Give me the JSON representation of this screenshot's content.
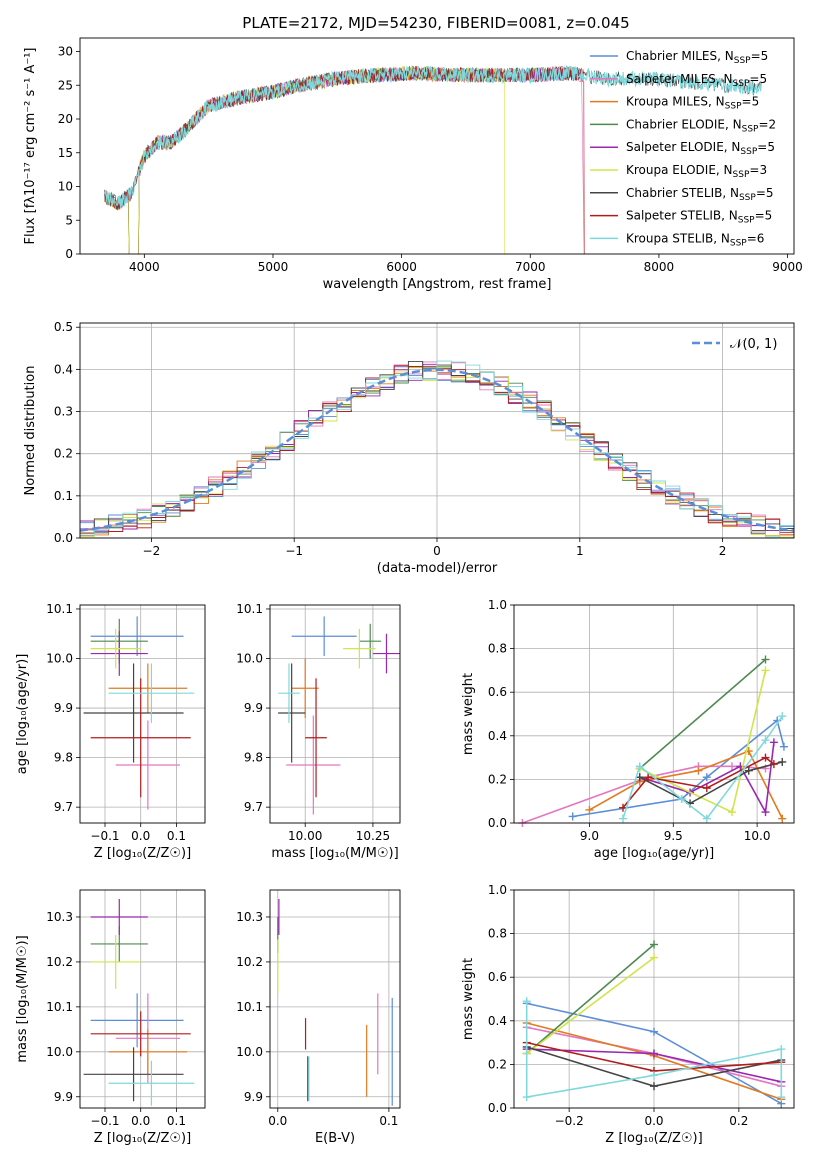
{
  "title": "PLATE=2172, MJD=54230, FIBERID=0081, z=0.045",
  "colors": {
    "chabrier_miles": "#5b8ed6",
    "salpeter_miles": "#e377c2",
    "kroupa_miles": "#e07b22",
    "chabrier_elodie": "#4e8a4e",
    "salpeter_elodie": "#9b27b0",
    "kroupa_elodie": "#cfe54a",
    "chabrier_stelib": "#444444",
    "salpeter_stelib": "#b11d1d",
    "kroupa_stelib": "#7fd9dc",
    "grid": "#b0b0b0",
    "normal_curve": "#5b8ed6"
  },
  "chart_data": [
    {
      "type": "line",
      "name": "spectrum",
      "xlabel": "wavelength [Angstrom, rest frame]",
      "ylabel": "Flux [fλ10⁻¹⁷ erg cm⁻² s⁻¹ A⁻¹]",
      "xlim": [
        3500,
        9050
      ],
      "ylim": [
        0,
        32
      ],
      "xticks": [
        "4000",
        "5000",
        "6000",
        "7000",
        "8000",
        "9000"
      ],
      "yticks": [
        "0",
        "5",
        "10",
        "15",
        "20",
        "25",
        "30"
      ],
      "spectrum_shape": {
        "x": [
          3690,
          3800,
          3900,
          4000,
          4100,
          4200,
          4300,
          4400,
          4500,
          4700,
          5000,
          5200,
          5500,
          5800,
          6100,
          6400,
          6700,
          7000,
          7300,
          7600,
          7900,
          8200,
          8500,
          8800
        ],
        "y": [
          8.5,
          7.5,
          9.0,
          14.5,
          16.5,
          16.5,
          18.0,
          20.0,
          22.0,
          23.0,
          24.0,
          25.0,
          26.0,
          26.5,
          26.8,
          26.5,
          26.5,
          26.5,
          26.8,
          26.0,
          26.0,
          25.5,
          25.0,
          24.5
        ]
      },
      "legend": [
        {
          "label": "Chabrier MILES, N",
          "sub": "SSP",
          "value": "=5"
        },
        {
          "label": "Salpeter MILES, N",
          "sub": "SSP",
          "value": "=5"
        },
        {
          "label": "Kroupa MILES, N",
          "sub": "SSP",
          "value": "=5"
        },
        {
          "label": "Chabrier ELODIE, N",
          "sub": "SSP",
          "value": "=2"
        },
        {
          "label": "Salpeter ELODIE, N",
          "sub": "SSP",
          "value": "=5"
        },
        {
          "label": "Kroupa ELODIE, N",
          "sub": "SSP",
          "value": "=3"
        },
        {
          "label": "Chabrier STELIB, N",
          "sub": "SSP",
          "value": "=5"
        },
        {
          "label": "Salpeter STELIB, N",
          "sub": "SSP",
          "value": "=5"
        },
        {
          "label": "Kroupa STELIB, N",
          "sub": "SSP",
          "value": "=6"
        }
      ]
    },
    {
      "type": "histogram",
      "name": "residuals",
      "xlabel": "(data-model)/error",
      "ylabel": "Normed distribution",
      "xlim": [
        -2.5,
        2.5
      ],
      "ylim": [
        0,
        0.51
      ],
      "xticks": [
        "−2",
        "−1",
        "0",
        "1",
        "2"
      ],
      "yticks": [
        "0.0",
        "0.1",
        "0.2",
        "0.3",
        "0.4",
        "0.5"
      ],
      "legend": "𝒩(0, 1)",
      "bin_width": 0.1
    },
    {
      "type": "errorbar",
      "name": "age-vs-Z",
      "xlabel": "Z [log₁₀(Z/Z☉)]",
      "ylabel": "age  [log₁₀(age/yr)]",
      "xlim": [
        -0.17,
        0.18
      ],
      "ylim": [
        9.668,
        10.108
      ],
      "xticks": [
        "−0.1",
        "0.0",
        "0.1"
      ],
      "yticks": [
        "9.7",
        "9.8",
        "9.9",
        "10.0",
        "10.1"
      ],
      "points": [
        {
          "series": "chabrier_miles",
          "x": -0.01,
          "y": 10.045,
          "xerr": 0.13,
          "yerr": 0.04
        },
        {
          "series": "salpeter_miles",
          "x": 0.02,
          "y": 9.785,
          "xerr": 0.09,
          "yerr": 0.09
        },
        {
          "series": "kroupa_miles",
          "x": 0.02,
          "y": 9.94,
          "xerr": 0.11,
          "yerr": 0.05
        },
        {
          "series": "chabrier_elodie",
          "x": -0.06,
          "y": 10.035,
          "xerr": 0.08,
          "yerr": 0.045
        },
        {
          "series": "salpeter_elodie",
          "x": -0.06,
          "y": 10.01,
          "xerr": 0.08,
          "yerr": 0.045
        },
        {
          "series": "kroupa_elodie",
          "x": -0.07,
          "y": 10.02,
          "xerr": 0.07,
          "yerr": 0.04
        },
        {
          "series": "chabrier_stelib",
          "x": -0.02,
          "y": 9.89,
          "xerr": 0.14,
          "yerr": 0.1
        },
        {
          "series": "salpeter_stelib",
          "x": 0.0,
          "y": 9.84,
          "xerr": 0.14,
          "yerr": 0.12
        },
        {
          "series": "kroupa_stelib",
          "x": 0.03,
          "y": 9.93,
          "xerr": 0.12,
          "yerr": 0.06
        }
      ]
    },
    {
      "type": "errorbar",
      "name": "age-vs-mass",
      "xlabel": "mass [log₁₀(M/M☉)]",
      "ylabel": "",
      "xlim": [
        9.87,
        10.35
      ],
      "ylim": [
        9.668,
        10.108
      ],
      "xticks": [
        "10.00",
        "10.25"
      ],
      "yticks": [
        "9.7",
        "9.8",
        "9.9",
        "10.0",
        "10.1"
      ],
      "points": [
        {
          "series": "chabrier_miles",
          "x": 10.07,
          "y": 10.045,
          "xerr": 0.12,
          "yerr": 0.04
        },
        {
          "series": "salpeter_miles",
          "x": 10.03,
          "y": 9.785,
          "xerr": 0.1,
          "yerr": 0.1
        },
        {
          "series": "kroupa_miles",
          "x": 10.0,
          "y": 9.94,
          "xerr": 0.05,
          "yerr": 0.06
        },
        {
          "series": "chabrier_elodie",
          "x": 10.24,
          "y": 10.035,
          "xerr": 0.04,
          "yerr": 0.035
        },
        {
          "series": "salpeter_elodie",
          "x": 10.3,
          "y": 10.01,
          "xerr": 0.05,
          "yerr": 0.04
        },
        {
          "series": "kroupa_elodie",
          "x": 10.2,
          "y": 10.02,
          "xerr": 0.06,
          "yerr": 0.04
        },
        {
          "series": "chabrier_stelib",
          "x": 9.95,
          "y": 9.89,
          "xerr": 0.05,
          "yerr": 0.1
        },
        {
          "series": "salpeter_stelib",
          "x": 10.04,
          "y": 9.84,
          "xerr": 0.04,
          "yerr": 0.12
        },
        {
          "series": "kroupa_stelib",
          "x": 9.94,
          "y": 9.93,
          "xerr": 0.04,
          "yerr": 0.06
        }
      ]
    },
    {
      "type": "line",
      "name": "weight-vs-age",
      "xlabel": "age  [log₁₀(age/yr)]",
      "ylabel": "mass weight",
      "xlim": [
        8.55,
        10.22
      ],
      "ylim": [
        0,
        1.0
      ],
      "xticks": [
        "9.0",
        "9.5",
        "10.0"
      ],
      "yticks": [
        "0.0",
        "0.2",
        "0.4",
        "0.6",
        "0.8",
        "1.0"
      ],
      "series": [
        {
          "key": "chabrier_miles",
          "x": [
            8.9,
            9.55,
            9.7,
            10.12,
            10.16
          ],
          "y": [
            0.03,
            0.11,
            0.21,
            0.47,
            0.35
          ]
        },
        {
          "key": "salpeter_miles",
          "x": [
            8.6,
            9.35,
            9.65,
            9.85,
            10.05
          ],
          "y": [
            0.0,
            0.21,
            0.26,
            0.26,
            0.25
          ]
        },
        {
          "key": "kroupa_miles",
          "x": [
            9.0,
            9.3,
            9.65,
            9.95,
            10.15
          ],
          "y": [
            0.06,
            0.19,
            0.24,
            0.33,
            0.02
          ]
        },
        {
          "key": "chabrier_elodie",
          "x": [
            9.3,
            10.05
          ],
          "y": [
            0.25,
            0.75
          ]
        },
        {
          "key": "salpeter_elodie",
          "x": [
            9.3,
            9.6,
            9.9,
            10.05,
            10.1
          ],
          "y": [
            0.21,
            0.14,
            0.26,
            0.05,
            0.37
          ]
        },
        {
          "key": "kroupa_elodie",
          "x": [
            9.3,
            9.85,
            10.05
          ],
          "y": [
            0.25,
            0.05,
            0.7
          ]
        },
        {
          "key": "chabrier_stelib",
          "x": [
            9.3,
            9.6,
            9.95,
            10.15
          ],
          "y": [
            0.21,
            0.09,
            0.24,
            0.28
          ]
        },
        {
          "key": "salpeter_stelib",
          "x": [
            9.2,
            9.35,
            9.7,
            10.05,
            10.1
          ],
          "y": [
            0.07,
            0.21,
            0.16,
            0.3,
            0.27
          ]
        },
        {
          "key": "kroupa_stelib",
          "x": [
            9.2,
            9.3,
            9.55,
            9.7,
            10.05,
            10.15
          ],
          "y": [
            0.02,
            0.26,
            0.11,
            0.02,
            0.38,
            0.49
          ]
        }
      ]
    },
    {
      "type": "errorbar",
      "name": "mass-vs-Z",
      "xlabel": "Z [log₁₀(Z/Z☉)]",
      "ylabel": "mass [log₁₀(M/M☉)]",
      "xlim": [
        -0.17,
        0.18
      ],
      "ylim": [
        9.875,
        10.36
      ],
      "xticks": [
        "−0.1",
        "0.0",
        "0.1"
      ],
      "yticks": [
        "9.9",
        "10.0",
        "10.1",
        "10.2",
        "10.3"
      ],
      "points": [
        {
          "series": "chabrier_miles",
          "x": -0.01,
          "y": 10.07,
          "xerr": 0.13,
          "yerr": 0.06
        },
        {
          "series": "salpeter_miles",
          "x": 0.02,
          "y": 10.03,
          "xerr": 0.09,
          "yerr": 0.1
        },
        {
          "series": "kroupa_miles",
          "x": 0.02,
          "y": 10.0,
          "xerr": 0.11,
          "yerr": 0.05
        },
        {
          "series": "chabrier_elodie",
          "x": -0.06,
          "y": 10.24,
          "xerr": 0.08,
          "yerr": 0.04
        },
        {
          "series": "salpeter_elodie",
          "x": -0.06,
          "y": 10.3,
          "xerr": 0.08,
          "yerr": 0.04
        },
        {
          "series": "kroupa_elodie",
          "x": -0.07,
          "y": 10.2,
          "xerr": 0.07,
          "yerr": 0.06
        },
        {
          "series": "chabrier_stelib",
          "x": -0.02,
          "y": 9.95,
          "xerr": 0.14,
          "yerr": 0.06
        },
        {
          "series": "salpeter_stelib",
          "x": 0.0,
          "y": 10.04,
          "xerr": 0.14,
          "yerr": 0.05
        },
        {
          "series": "kroupa_stelib",
          "x": 0.03,
          "y": 9.93,
          "xerr": 0.12,
          "yerr": 0.05
        }
      ]
    },
    {
      "type": "errorbar",
      "name": "mass-vs-ebv",
      "xlabel": "E(B-V)",
      "ylabel": "",
      "xlim": [
        -0.007,
        0.11
      ],
      "ylim": [
        9.875,
        10.36
      ],
      "xticks": [
        "0.0",
        "0.1"
      ],
      "yticks": [
        "9.9",
        "10.0",
        "10.1",
        "10.2",
        "10.3"
      ],
      "points": [
        {
          "series": "chabrier_miles",
          "x": 0.103,
          "y": 10.0,
          "xerr": 0,
          "yerr": 0.12
        },
        {
          "series": "salpeter_miles",
          "x": 0.09,
          "y": 10.04,
          "xerr": 0,
          "yerr": 0.09
        },
        {
          "series": "kroupa_miles",
          "x": 0.08,
          "y": 9.98,
          "xerr": 0,
          "yerr": 0.08
        },
        {
          "series": "chabrier_elodie",
          "x": 0.0,
          "y": 10.26,
          "xerr": 0,
          "yerr": 0.04
        },
        {
          "series": "salpeter_elodie",
          "x": 0.001,
          "y": 10.3,
          "xerr": 0,
          "yerr": 0.04
        },
        {
          "series": "kroupa_elodie",
          "x": 0.0,
          "y": 10.19,
          "xerr": 0,
          "yerr": 0.06
        },
        {
          "series": "chabrier_stelib",
          "x": 0.027,
          "y": 9.94,
          "xerr": 0,
          "yerr": 0.05
        },
        {
          "series": "salpeter_stelib",
          "x": 0.025,
          "y": 10.04,
          "xerr": 0,
          "yerr": 0.035
        },
        {
          "series": "kroupa_stelib",
          "x": 0.028,
          "y": 9.94,
          "xerr": 0,
          "yerr": 0.05
        }
      ]
    },
    {
      "type": "line",
      "name": "weight-vs-Z",
      "xlabel": "Z [log₁₀(Z/Z☉)]",
      "ylabel": "mass weight",
      "xlim": [
        -0.33,
        0.33
      ],
      "ylim": [
        0,
        1.0
      ],
      "xticks": [
        "−0.2",
        "0.0",
        "0.2"
      ],
      "yticks": [
        "0.0",
        "0.2",
        "0.4",
        "0.6",
        "0.8",
        "1.0"
      ],
      "series": [
        {
          "key": "chabrier_miles",
          "x": [
            -0.3,
            0.0,
            0.3
          ],
          "y": [
            0.48,
            0.35,
            0.02
          ]
        },
        {
          "key": "salpeter_miles",
          "x": [
            -0.3,
            0.0,
            0.3
          ],
          "y": [
            0.37,
            0.25,
            0.1
          ]
        },
        {
          "key": "kroupa_miles",
          "x": [
            -0.3,
            0.0,
            0.3
          ],
          "y": [
            0.39,
            0.24,
            0.04
          ]
        },
        {
          "key": "chabrier_elodie",
          "x": [
            -0.3,
            0.0
          ],
          "y": [
            0.25,
            0.75
          ]
        },
        {
          "key": "salpeter_elodie",
          "x": [
            -0.3,
            0.0,
            0.3
          ],
          "y": [
            0.27,
            0.25,
            0.12
          ]
        },
        {
          "key": "kroupa_elodie",
          "x": [
            -0.3,
            0.0
          ],
          "y": [
            0.25,
            0.69
          ]
        },
        {
          "key": "chabrier_stelib",
          "x": [
            -0.3,
            0.0,
            0.3
          ],
          "y": [
            0.28,
            0.1,
            0.22
          ]
        },
        {
          "key": "salpeter_stelib",
          "x": [
            -0.3,
            0.0,
            0.3
          ],
          "y": [
            0.3,
            0.17,
            0.21
          ]
        },
        {
          "key": "kroupa_stelib",
          "x": [
            -0.3,
            -0.3,
            0.0,
            0.3,
            0.3
          ],
          "y": [
            0.49,
            0.05,
            0.15,
            0.27,
            0.05
          ]
        }
      ]
    }
  ]
}
